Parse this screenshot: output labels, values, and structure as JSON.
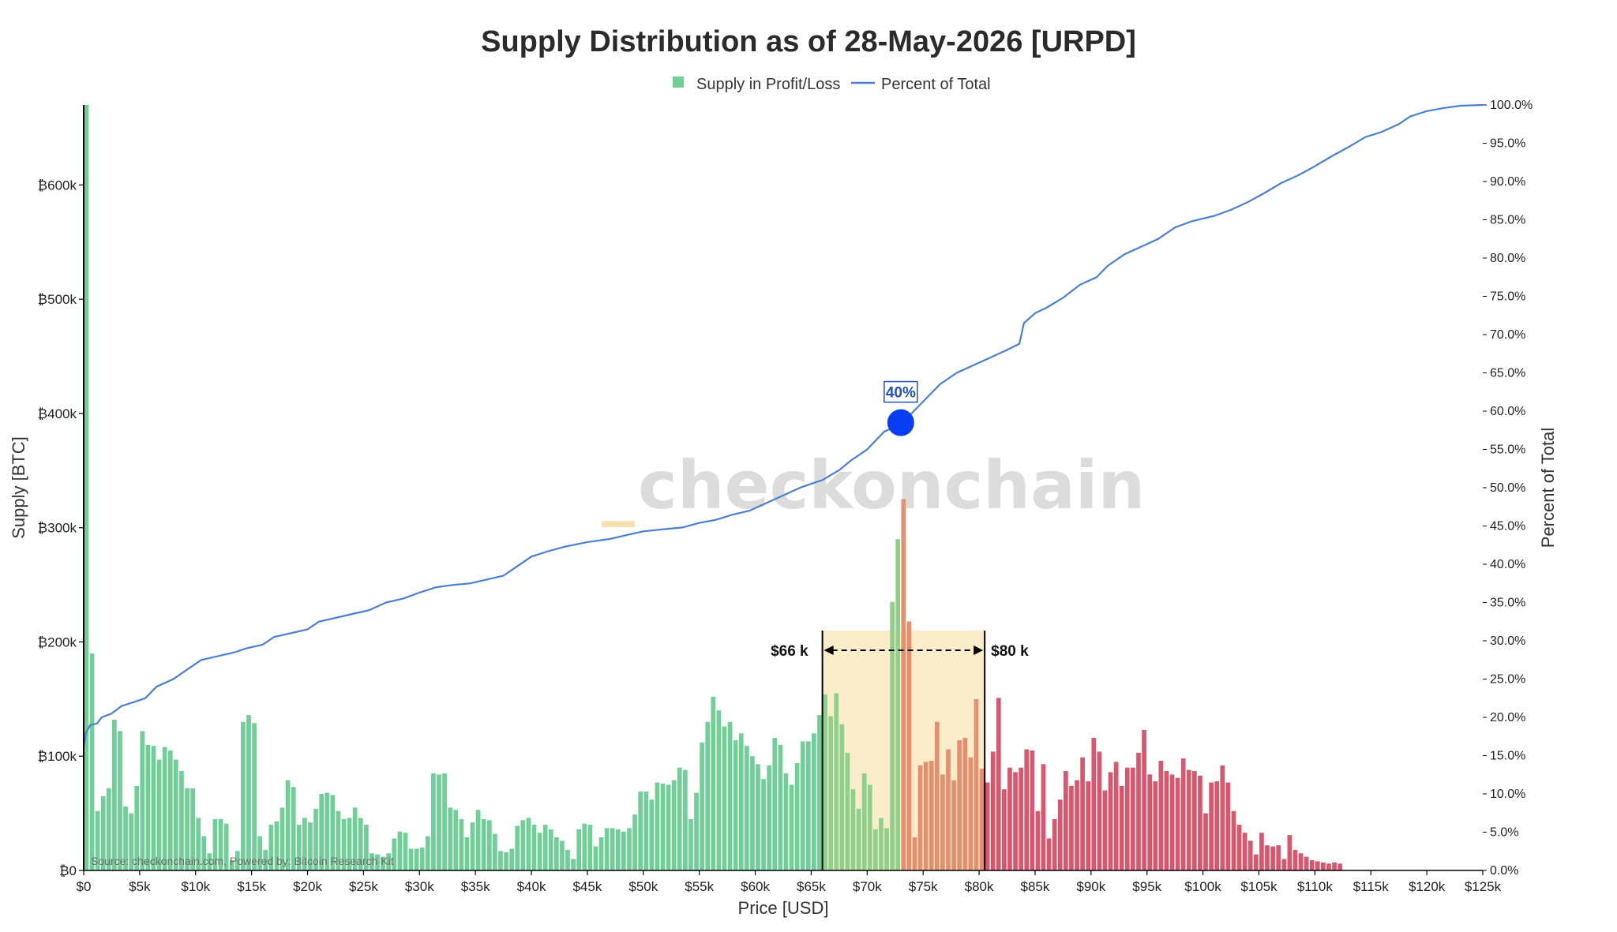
{
  "chart_data": {
    "type": "bar",
    "title": "Supply Distribution as of 28-May-2026 [URPD]",
    "xlabel": "Price [USD]",
    "ylabel": "Supply [BTC]",
    "y2label": "Percent of Total",
    "legend": [
      {
        "name": "Supply in Profit/Loss",
        "kind": "square",
        "color": "#6fcf97"
      },
      {
        "name": "Percent of Total",
        "kind": "line",
        "color": "#4a7fd6"
      }
    ],
    "xlim": [
      0,
      125000
    ],
    "ylim": [
      0,
      670000
    ],
    "y2lim": [
      0,
      100
    ],
    "x_ticks": [
      "$0",
      "$5k",
      "$10k",
      "$15k",
      "$20k",
      "$25k",
      "$30k",
      "$35k",
      "$40k",
      "$45k",
      "$50k",
      "$55k",
      "$60k",
      "$65k",
      "$70k",
      "$75k",
      "$80k",
      "$85k",
      "$90k",
      "$95k",
      "$100k",
      "$105k",
      "$110k",
      "$115k",
      "$120k",
      "$125k"
    ],
    "y_ticks": [
      "₿0",
      "₿100k",
      "₿200k",
      "₿300k",
      "₿400k",
      "₿500k",
      "₿600k"
    ],
    "y2_ticks": [
      "0.0%",
      "5.0%",
      "10.0%",
      "15.0%",
      "20.0%",
      "25.0%",
      "30.0%",
      "35.0%",
      "40.0%",
      "45.0%",
      "50.0%",
      "55.0%",
      "60.0%",
      "65.0%",
      "70.0%",
      "75.0%",
      "80.0%",
      "85.0%",
      "90.0%",
      "95.0%",
      "100.0%"
    ],
    "bin_width": 500,
    "supply_values_k": [
      670,
      190,
      52,
      65,
      72,
      132,
      122,
      56,
      50,
      74,
      122,
      110,
      109,
      97,
      108,
      105,
      97,
      87,
      72,
      72,
      46,
      30,
      15,
      45,
      45,
      41,
      9,
      17,
      130,
      136,
      129,
      30,
      18,
      40,
      43,
      55,
      79,
      73,
      40,
      46,
      42,
      54,
      67,
      68,
      66,
      52,
      45,
      46,
      55,
      46,
      40,
      15,
      14,
      12,
      15,
      28,
      34,
      33,
      19,
      19,
      20,
      30,
      85,
      84,
      85,
      55,
      53,
      45,
      29,
      42,
      53,
      45,
      44,
      32,
      17,
      16,
      19,
      39,
      44,
      46,
      40,
      33,
      40,
      36,
      29,
      26,
      18,
      10,
      36,
      41,
      40,
      21,
      29,
      37,
      37,
      36,
      34,
      37,
      49,
      69,
      69,
      62,
      77,
      76,
      75,
      79,
      90,
      88,
      45,
      68,
      112,
      130,
      152,
      140,
      126,
      130,
      114,
      120,
      109,
      100,
      93,
      80,
      92,
      116,
      110,
      85,
      75,
      94,
      113,
      113,
      120,
      136,
      154,
      135,
      155,
      128,
      103,
      71,
      54,
      85,
      75,
      36,
      46,
      37,
      235,
      290,
      325,
      218,
      29,
      92,
      95,
      96,
      130,
      84,
      106,
      79,
      114,
      116,
      99,
      150,
      89,
      77,
      104,
      151,
      71,
      90,
      86,
      90,
      106,
      105,
      52,
      93,
      28,
      45,
      62,
      87,
      74,
      79,
      99,
      78,
      116,
      104,
      70,
      86,
      95,
      74,
      90,
      90,
      103,
      123,
      84,
      78,
      96,
      87,
      84,
      81,
      98,
      88,
      87,
      83,
      50,
      77,
      78,
      92,
      77,
      52,
      40,
      33,
      26,
      14,
      33,
      22,
      21,
      22,
      10,
      31,
      18,
      15,
      12,
      9,
      8,
      7,
      6,
      7,
      6
    ],
    "percent_curve": [
      [
        0,
        16
      ],
      [
        200,
        18
      ],
      [
        600,
        19
      ],
      [
        1200,
        19.2
      ],
      [
        1600,
        20
      ],
      [
        2500,
        20.5
      ],
      [
        3400,
        21.5
      ],
      [
        4500,
        22
      ],
      [
        5500,
        22.5
      ],
      [
        6500,
        24
      ],
      [
        8000,
        25
      ],
      [
        9000,
        26
      ],
      [
        10500,
        27.5
      ],
      [
        12000,
        28
      ],
      [
        13500,
        28.5
      ],
      [
        14500,
        29
      ],
      [
        16000,
        29.5
      ],
      [
        17000,
        30.5
      ],
      [
        18500,
        31
      ],
      [
        20000,
        31.5
      ],
      [
        21000,
        32.5
      ],
      [
        22500,
        33
      ],
      [
        24000,
        33.5
      ],
      [
        25500,
        34
      ],
      [
        27000,
        35
      ],
      [
        28500,
        35.5
      ],
      [
        30000,
        36.3
      ],
      [
        31500,
        37
      ],
      [
        33000,
        37.3
      ],
      [
        34500,
        37.5
      ],
      [
        36000,
        38
      ],
      [
        37500,
        38.5
      ],
      [
        38500,
        39.5
      ],
      [
        40000,
        41
      ],
      [
        41500,
        41.7
      ],
      [
        43000,
        42.3
      ],
      [
        45000,
        42.9
      ],
      [
        47000,
        43.3
      ],
      [
        48500,
        43.8
      ],
      [
        50000,
        44.3
      ],
      [
        52000,
        44.6
      ],
      [
        53500,
        44.8
      ],
      [
        55000,
        45.4
      ],
      [
        56500,
        45.8
      ],
      [
        58000,
        46.5
      ],
      [
        59500,
        47
      ],
      [
        61000,
        48
      ],
      [
        62500,
        49
      ],
      [
        64000,
        50
      ],
      [
        65000,
        50.5
      ],
      [
        66000,
        51
      ],
      [
        67500,
        52.3
      ],
      [
        68500,
        53.5
      ],
      [
        70000,
        55
      ],
      [
        71500,
        57.3
      ],
      [
        72500,
        58
      ],
      [
        73500,
        59
      ],
      [
        74500,
        60.5
      ],
      [
        75500,
        62
      ],
      [
        76500,
        63.5
      ],
      [
        78000,
        65
      ],
      [
        79500,
        66
      ],
      [
        81000,
        67
      ],
      [
        82500,
        68
      ],
      [
        83600,
        68.8
      ],
      [
        84000,
        71.5
      ],
      [
        85000,
        72.8
      ],
      [
        86000,
        73.5
      ],
      [
        87500,
        74.8
      ],
      [
        89000,
        76.5
      ],
      [
        90500,
        77.5
      ],
      [
        91500,
        79
      ],
      [
        93000,
        80.5
      ],
      [
        94500,
        81.5
      ],
      [
        96000,
        82.5
      ],
      [
        97500,
        84
      ],
      [
        99000,
        84.8
      ],
      [
        101000,
        85.5
      ],
      [
        102500,
        86.3
      ],
      [
        104000,
        87.3
      ],
      [
        105500,
        88.5
      ],
      [
        107000,
        89.8
      ],
      [
        108500,
        90.8
      ],
      [
        110000,
        92
      ],
      [
        111500,
        93.3
      ],
      [
        113000,
        94.5
      ],
      [
        114500,
        95.8
      ],
      [
        116000,
        96.5
      ],
      [
        117500,
        97.5
      ],
      [
        118500,
        98.5
      ],
      [
        120000,
        99.2
      ],
      [
        121500,
        99.6
      ],
      [
        123000,
        99.9
      ],
      [
        125000,
        100
      ]
    ],
    "highlight_band": {
      "x_range": [
        66000,
        80500
      ],
      "left_label": "$66 k",
      "right_label": "$80 k"
    },
    "marker": {
      "x": 73000,
      "y_percent": 40,
      "label": "40%"
    },
    "colors": {
      "profit": "#6fcf97",
      "profit_band": "#8fd08a",
      "loss_band": "#e58f6e",
      "loss": "#d9566c",
      "line": "#4a7fd6",
      "marker": "#0a3ef5",
      "band_fill": "#fbecca"
    },
    "profit_loss_split_x": 73000,
    "grid": false
  },
  "watermark": {
    "prefix": "_",
    "text": "checkonchain"
  },
  "source": "Source: checkonchain.com, Powered by: Bitcoin Research Kit"
}
